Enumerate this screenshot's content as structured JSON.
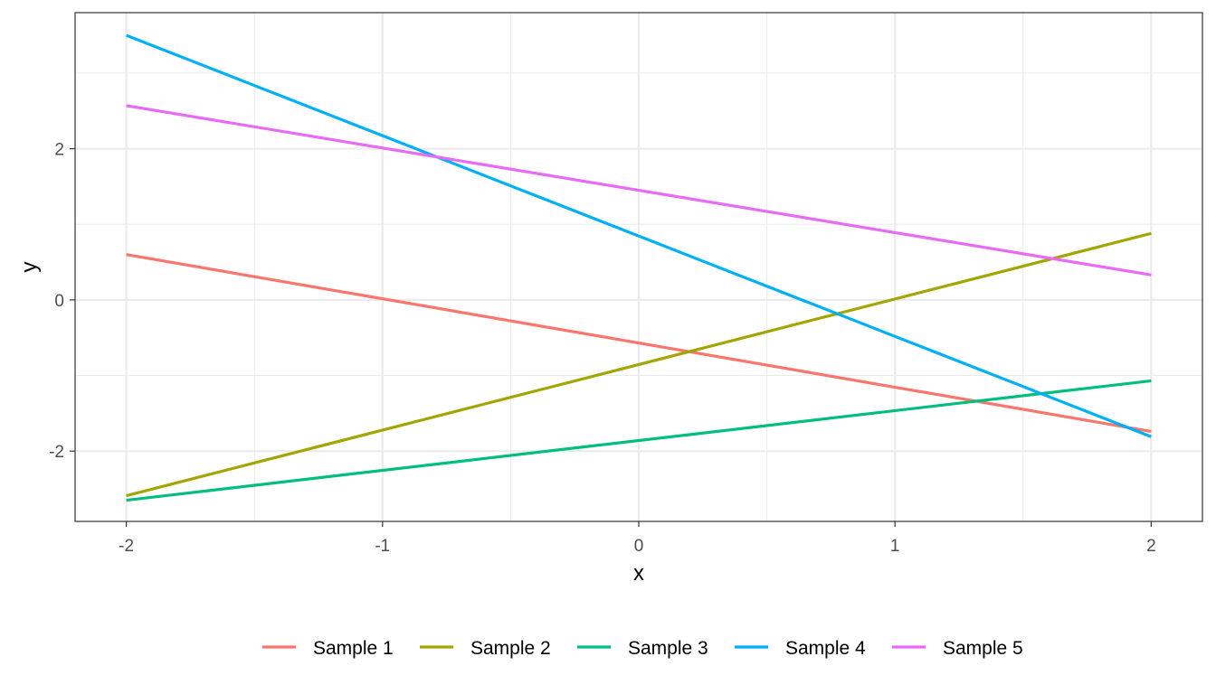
{
  "chart_data": {
    "type": "line",
    "title": "",
    "xlabel": "x",
    "ylabel": "y",
    "xlim": [
      -2.2,
      2.2
    ],
    "ylim": [
      -2.93,
      3.8
    ],
    "x_ticks": [
      -2,
      -1,
      0,
      1,
      2
    ],
    "y_ticks": [
      -2,
      0,
      2
    ],
    "x_minor_ticks": [
      -1.5,
      -0.5,
      0.5,
      1.5
    ],
    "y_minor_ticks": [
      -1,
      1,
      3
    ],
    "grid": true,
    "legend_position": "bottom",
    "series": [
      {
        "name": "Sample 1",
        "color": "#F8766D",
        "x": [
          -2,
          2
        ],
        "y": [
          0.6,
          -1.74
        ]
      },
      {
        "name": "Sample 2",
        "color": "#A3A500",
        "x": [
          -2,
          2
        ],
        "y": [
          -2.59,
          0.88
        ]
      },
      {
        "name": "Sample 3",
        "color": "#00BF7D",
        "x": [
          -2,
          2
        ],
        "y": [
          -2.65,
          -1.07
        ]
      },
      {
        "name": "Sample 4",
        "color": "#00B0F6",
        "x": [
          -2,
          2
        ],
        "y": [
          3.5,
          -1.81
        ]
      },
      {
        "name": "Sample 5",
        "color": "#E76BF3",
        "x": [
          -2,
          2
        ],
        "y": [
          2.57,
          0.33
        ]
      }
    ]
  }
}
